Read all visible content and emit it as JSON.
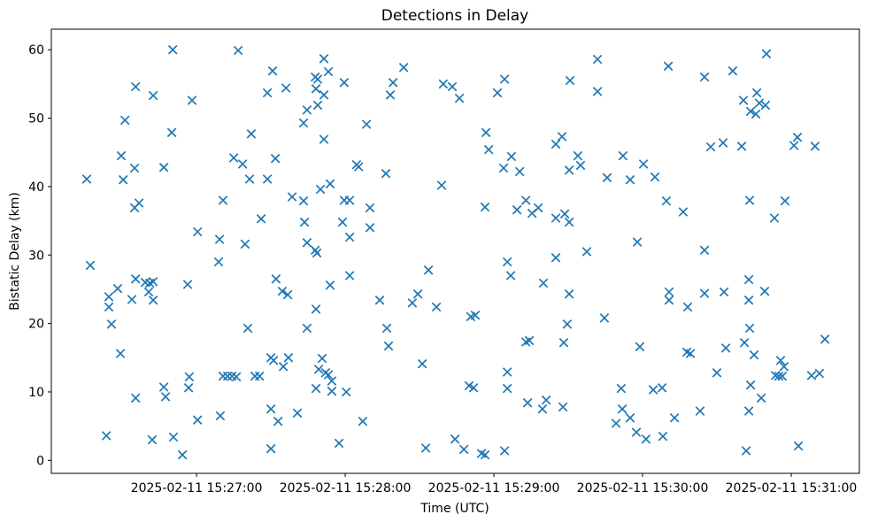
{
  "chart_data": {
    "type": "scatter",
    "title": "Detections in Delay",
    "xlabel": "Time (UTC)",
    "ylabel": "Bistatic Delay (km)",
    "marker": "x",
    "marker_color": "#1f77b4",
    "axis_color": "#000000",
    "background_color": "#ffffff",
    "grid": false,
    "legend": null,
    "x_unit": "seconds after 2025-02-11 15:26:00 UTC",
    "x_range": [
      1.4,
      327.5
    ],
    "y_range": [
      -1.9,
      63.0
    ],
    "x_ticks": [
      {
        "s": 60,
        "label": "2025-02-11 15:27:00"
      },
      {
        "s": 120,
        "label": "2025-02-11 15:28:00"
      },
      {
        "s": 180,
        "label": "2025-02-11 15:29:00"
      },
      {
        "s": 240,
        "label": "2025-02-11 15:30:00"
      },
      {
        "s": 300,
        "label": "2025-02-11 15:31:00"
      }
    ],
    "y_ticks": [
      0,
      10,
      20,
      30,
      40,
      50,
      60
    ],
    "points": [
      [
        50.4,
        60.0
      ],
      [
        76.8,
        59.9
      ],
      [
        35.4,
        54.6
      ],
      [
        42.5,
        53.3
      ],
      [
        58.2,
        52.6
      ],
      [
        31.1,
        49.7
      ],
      [
        50.0,
        47.9
      ],
      [
        82.1,
        47.7
      ],
      [
        29.6,
        44.5
      ],
      [
        35.0,
        42.7
      ],
      [
        46.8,
        42.8
      ],
      [
        75.0,
        44.2
      ],
      [
        78.6,
        43.3
      ],
      [
        15.7,
        41.1
      ],
      [
        30.4,
        41.0
      ],
      [
        81.4,
        41.1
      ],
      [
        111.4,
        58.7
      ],
      [
        90.7,
        56.9
      ],
      [
        113.2,
        56.8
      ],
      [
        143.6,
        57.4
      ],
      [
        107.9,
        56.0
      ],
      [
        108.9,
        55.7
      ],
      [
        119.6,
        55.2
      ],
      [
        108.2,
        54.3
      ],
      [
        111.4,
        53.4
      ],
      [
        96.1,
        54.4
      ],
      [
        88.6,
        53.7
      ],
      [
        139.3,
        55.2
      ],
      [
        138.2,
        53.4
      ],
      [
        159.6,
        55.0
      ],
      [
        163.2,
        54.6
      ],
      [
        108.9,
        51.9
      ],
      [
        104.6,
        51.2
      ],
      [
        103.2,
        49.3
      ],
      [
        128.6,
        49.1
      ],
      [
        111.4,
        46.9
      ],
      [
        91.8,
        44.1
      ],
      [
        124.6,
        43.2
      ],
      [
        136.4,
        41.9
      ],
      [
        125.4,
        42.9
      ],
      [
        221.8,
        58.6
      ],
      [
        184.3,
        55.7
      ],
      [
        210.7,
        55.5
      ],
      [
        181.4,
        53.7
      ],
      [
        221.8,
        53.9
      ],
      [
        166.1,
        52.9
      ],
      [
        176.8,
        47.9
      ],
      [
        207.5,
        47.3
      ],
      [
        205.0,
        46.2
      ],
      [
        177.9,
        45.4
      ],
      [
        187.1,
        44.4
      ],
      [
        213.9,
        44.5
      ],
      [
        232.1,
        44.5
      ],
      [
        183.9,
        42.7
      ],
      [
        215.0,
        43.1
      ],
      [
        190.4,
        42.2
      ],
      [
        210.4,
        42.4
      ],
      [
        240.4,
        43.3
      ],
      [
        225.7,
        41.3
      ],
      [
        245.0,
        41.4
      ],
      [
        235.0,
        41.0
      ],
      [
        290.0,
        59.4
      ],
      [
        250.4,
        57.6
      ],
      [
        276.4,
        56.9
      ],
      [
        265.0,
        56.0
      ],
      [
        286.1,
        53.7
      ],
      [
        287.1,
        52.2
      ],
      [
        280.7,
        52.6
      ],
      [
        289.6,
        51.9
      ],
      [
        283.6,
        51.0
      ],
      [
        285.7,
        50.6
      ],
      [
        302.5,
        47.2
      ],
      [
        301.1,
        46.0
      ],
      [
        272.5,
        46.4
      ],
      [
        267.5,
        45.8
      ],
      [
        280.0,
        45.9
      ],
      [
        309.6,
        45.9
      ],
      [
        36.8,
        37.6
      ],
      [
        35.0,
        36.9
      ],
      [
        70.7,
        38.0
      ],
      [
        60.4,
        33.4
      ],
      [
        69.3,
        32.3
      ],
      [
        79.6,
        31.6
      ],
      [
        68.9,
        29.0
      ],
      [
        17.1,
        28.5
      ],
      [
        35.4,
        26.5
      ],
      [
        28.2,
        25.1
      ],
      [
        39.3,
        26.0
      ],
      [
        41.1,
        25.9
      ],
      [
        42.5,
        26.1
      ],
      [
        40.7,
        24.6
      ],
      [
        24.6,
        23.9
      ],
      [
        33.9,
        23.5
      ],
      [
        42.5,
        23.4
      ],
      [
        24.6,
        22.4
      ],
      [
        56.4,
        25.7
      ],
      [
        25.7,
        19.9
      ],
      [
        80.7,
        19.3
      ],
      [
        88.6,
        41.1
      ],
      [
        110.0,
        39.6
      ],
      [
        113.9,
        40.4
      ],
      [
        98.6,
        38.5
      ],
      [
        103.2,
        37.9
      ],
      [
        119.6,
        38.0
      ],
      [
        121.8,
        38.0
      ],
      [
        130.0,
        36.9
      ],
      [
        86.1,
        35.3
      ],
      [
        103.6,
        34.8
      ],
      [
        118.9,
        34.8
      ],
      [
        130.0,
        34.0
      ],
      [
        121.8,
        32.6
      ],
      [
        104.6,
        31.8
      ],
      [
        107.9,
        30.7
      ],
      [
        108.6,
        30.3
      ],
      [
        158.9,
        40.2
      ],
      [
        153.6,
        27.8
      ],
      [
        92.1,
        26.5
      ],
      [
        121.8,
        27.0
      ],
      [
        113.9,
        25.6
      ],
      [
        94.6,
        24.7
      ],
      [
        96.8,
        24.2
      ],
      [
        133.9,
        23.4
      ],
      [
        149.3,
        24.3
      ],
      [
        147.1,
        23.0
      ],
      [
        156.8,
        22.4
      ],
      [
        108.2,
        22.1
      ],
      [
        176.4,
        37.0
      ],
      [
        189.3,
        36.6
      ],
      [
        192.9,
        38.0
      ],
      [
        195.4,
        36.1
      ],
      [
        197.9,
        36.9
      ],
      [
        205.0,
        35.4
      ],
      [
        208.6,
        36.0
      ],
      [
        210.4,
        34.8
      ],
      [
        237.9,
        31.9
      ],
      [
        217.5,
        30.5
      ],
      [
        205.0,
        29.6
      ],
      [
        185.4,
        29.0
      ],
      [
        186.8,
        27.0
      ],
      [
        200.0,
        25.9
      ],
      [
        210.4,
        24.3
      ],
      [
        170.7,
        21.0
      ],
      [
        172.5,
        21.2
      ],
      [
        224.6,
        20.8
      ],
      [
        209.6,
        19.9
      ],
      [
        249.6,
        37.9
      ],
      [
        256.4,
        36.3
      ],
      [
        283.2,
        38.0
      ],
      [
        297.5,
        37.9
      ],
      [
        293.2,
        35.4
      ],
      [
        265.0,
        30.7
      ],
      [
        282.9,
        26.4
      ],
      [
        250.7,
        24.6
      ],
      [
        250.7,
        23.4
      ],
      [
        265.0,
        24.4
      ],
      [
        272.9,
        24.6
      ],
      [
        282.9,
        23.4
      ],
      [
        289.3,
        24.7
      ],
      [
        258.2,
        22.4
      ],
      [
        283.2,
        19.3
      ],
      [
        29.3,
        15.6
      ],
      [
        57.1,
        12.2
      ],
      [
        46.8,
        10.7
      ],
      [
        56.8,
        10.6
      ],
      [
        35.4,
        9.1
      ],
      [
        47.5,
        9.3
      ],
      [
        70.7,
        12.3
      ],
      [
        72.5,
        12.3
      ],
      [
        74.3,
        12.3
      ],
      [
        76.1,
        12.2
      ],
      [
        83.6,
        12.3
      ],
      [
        85.4,
        12.3
      ],
      [
        60.4,
        5.9
      ],
      [
        69.6,
        6.5
      ],
      [
        23.6,
        3.6
      ],
      [
        42.1,
        3.0
      ],
      [
        50.7,
        3.4
      ],
      [
        54.3,
        0.8
      ],
      [
        104.6,
        19.3
      ],
      [
        136.8,
        19.3
      ],
      [
        137.5,
        16.7
      ],
      [
        90.0,
        15.0
      ],
      [
        91.1,
        14.6
      ],
      [
        97.1,
        15.0
      ],
      [
        95.0,
        13.7
      ],
      [
        110.7,
        14.9
      ],
      [
        109.3,
        13.3
      ],
      [
        112.1,
        12.8
      ],
      [
        113.2,
        12.5
      ],
      [
        114.6,
        11.6
      ],
      [
        108.2,
        10.5
      ],
      [
        114.6,
        10.1
      ],
      [
        120.4,
        10.0
      ],
      [
        151.1,
        14.1
      ],
      [
        90.0,
        7.5
      ],
      [
        92.9,
        5.7
      ],
      [
        100.7,
        6.9
      ],
      [
        127.1,
        5.7
      ],
      [
        117.5,
        2.5
      ],
      [
        90.0,
        1.7
      ],
      [
        152.5,
        1.8
      ],
      [
        164.3,
        3.1
      ],
      [
        192.9,
        17.3
      ],
      [
        194.3,
        17.5
      ],
      [
        208.2,
        17.2
      ],
      [
        238.9,
        16.6
      ],
      [
        185.4,
        12.9
      ],
      [
        185.4,
        10.5
      ],
      [
        170.0,
        10.9
      ],
      [
        171.8,
        10.6
      ],
      [
        193.6,
        8.4
      ],
      [
        201.1,
        8.8
      ],
      [
        199.6,
        7.5
      ],
      [
        207.9,
        7.8
      ],
      [
        231.4,
        10.5
      ],
      [
        244.3,
        10.3
      ],
      [
        247.9,
        10.6
      ],
      [
        231.8,
        7.5
      ],
      [
        235.0,
        6.2
      ],
      [
        229.3,
        5.4
      ],
      [
        237.5,
        4.1
      ],
      [
        241.4,
        3.1
      ],
      [
        167.9,
        1.6
      ],
      [
        175.0,
        1.0
      ],
      [
        176.4,
        0.8
      ],
      [
        184.3,
        1.4
      ],
      [
        313.6,
        17.7
      ],
      [
        281.1,
        17.2
      ],
      [
        257.9,
        15.8
      ],
      [
        259.3,
        15.6
      ],
      [
        273.6,
        16.4
      ],
      [
        285.0,
        15.4
      ],
      [
        295.7,
        14.6
      ],
      [
        297.1,
        13.7
      ],
      [
        270.0,
        12.8
      ],
      [
        293.6,
        12.4
      ],
      [
        295.0,
        12.3
      ],
      [
        296.4,
        12.3
      ],
      [
        308.2,
        12.4
      ],
      [
        311.4,
        12.7
      ],
      [
        283.6,
        11.0
      ],
      [
        287.9,
        9.1
      ],
      [
        252.9,
        6.2
      ],
      [
        263.2,
        7.2
      ],
      [
        282.9,
        7.2
      ],
      [
        248.2,
        3.5
      ],
      [
        302.9,
        2.1
      ],
      [
        281.8,
        1.4
      ]
    ]
  }
}
